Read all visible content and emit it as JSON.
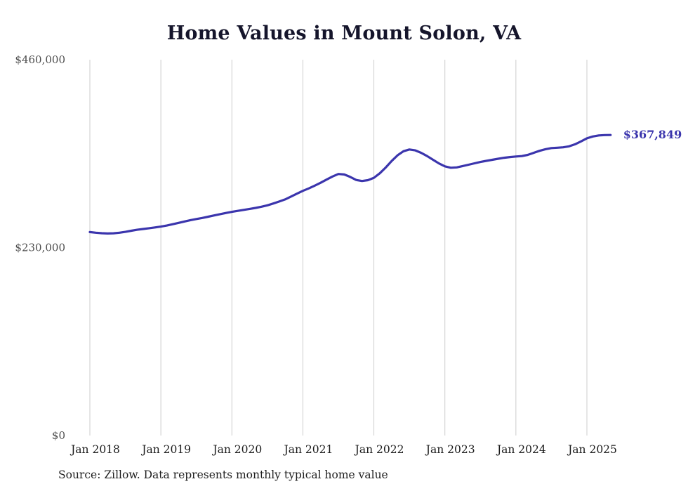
{
  "title": "Home Values in Mount Solon, VA",
  "source_note": "Source: Zillow. Data represents monthly typical home value",
  "end_label": "$367,849",
  "colors": {
    "line": "#3b35ad",
    "grid": "#cccccc",
    "y_tick_text": "#4d4d4d",
    "x_tick_text": "#1a1a1a",
    "title_text": "#15152b"
  },
  "chart_data": {
    "type": "line",
    "title": "Home Values in Mount Solon, VA",
    "x_start": "2018-01",
    "x_end": "2025-05",
    "x_tick_labels": [
      "Jan 2018",
      "Jan 2019",
      "Jan 2020",
      "Jan 2021",
      "Jan 2022",
      "Jan 2023",
      "Jan 2024",
      "Jan 2025"
    ],
    "y_tick_labels": [
      "$0",
      "$230,000",
      "$460,000"
    ],
    "y_ticks": [
      0,
      230000,
      460000
    ],
    "ylim": [
      0,
      460000
    ],
    "grid": "vertical-only",
    "end_value": 367849,
    "series": [
      {
        "name": "Monthly typical home value",
        "values": [
          249000,
          248200,
          247600,
          247300,
          247500,
          248200,
          249300,
          250600,
          251800,
          252800,
          253700,
          254700,
          255700,
          257000,
          258600,
          260300,
          262000,
          263600,
          265000,
          266300,
          267800,
          269400,
          270900,
          272400,
          273800,
          275000,
          276200,
          277400,
          278600,
          280000,
          281800,
          284000,
          286400,
          289000,
          292500,
          296000,
          299500,
          302500,
          305800,
          309400,
          313200,
          317000,
          320100,
          319500,
          316500,
          312800,
          311500,
          312500,
          315500,
          321000,
          328000,
          336000,
          343000,
          348000,
          350100,
          349000,
          346000,
          342000,
          337500,
          333000,
          329500,
          327800,
          328200,
          329800,
          331500,
          333200,
          334800,
          336200,
          337500,
          338800,
          340000,
          340800,
          341500,
          342000,
          343500,
          346000,
          348500,
          350500,
          351800,
          352300,
          352800,
          354000,
          356500,
          360000,
          363800,
          366000,
          367300,
          367700,
          367849
        ]
      }
    ]
  }
}
